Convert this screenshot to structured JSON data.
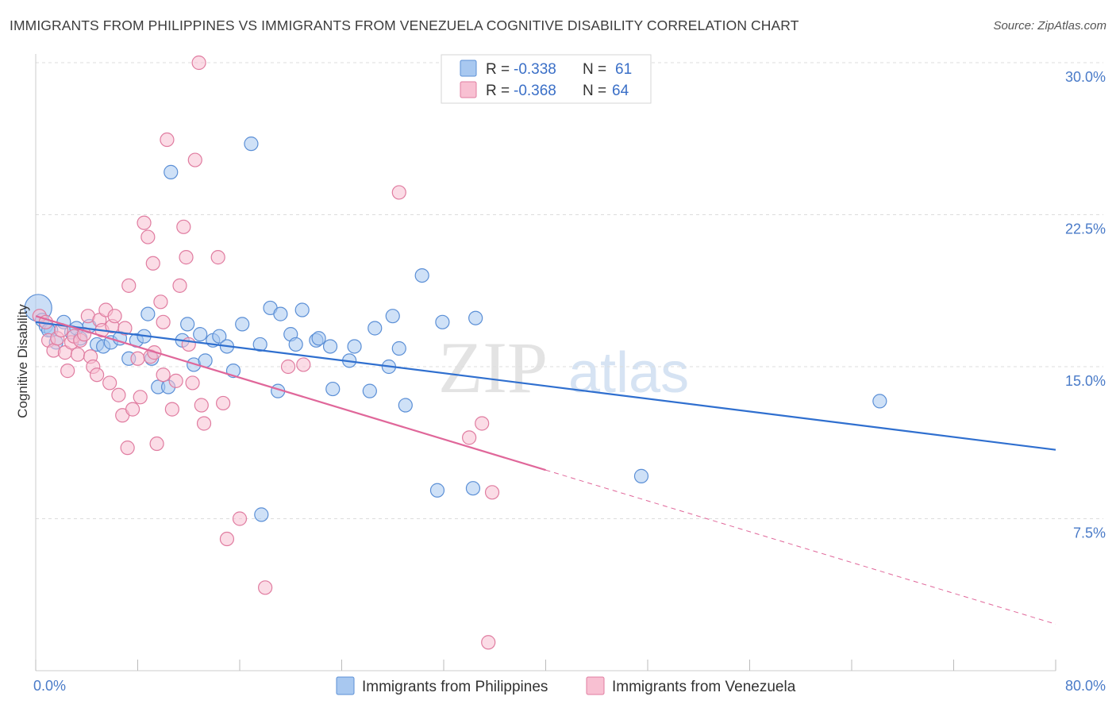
{
  "header": {
    "title": "IMMIGRANTS FROM PHILIPPINES VS IMMIGRANTS FROM VENEZUELA COGNITIVE DISABILITY CORRELATION CHART",
    "source": "Source: ZipAtlas.com"
  },
  "watermark": {
    "zip": "ZIP",
    "atlas": "atlas"
  },
  "chart_data": {
    "type": "scatter",
    "ylabel": "Cognitive Disability",
    "xlim": [
      0,
      80
    ],
    "ylim": [
      0,
      30.5
    ],
    "x_tick_labels": [
      "0.0%",
      "80.0%"
    ],
    "y_ticks": [
      7.5,
      15.0,
      22.5,
      30.0
    ],
    "y_tick_labels": [
      "7.5%",
      "15.0%",
      "22.5%",
      "30.0%"
    ],
    "grid": true,
    "legend_stats": [
      {
        "r_label": "R =",
        "r_value": "-0.338",
        "n_label": "N =",
        "n_value": "61"
      },
      {
        "r_label": "R =",
        "r_value": "-0.368",
        "n_label": "N =",
        "n_value": "64"
      }
    ],
    "series": [
      {
        "name": "Immigrants from Philippines",
        "color": "#a8c8f0",
        "stroke": "#5b8fd6",
        "line_color": "#2f6fcf",
        "trend": {
          "x0": 0,
          "y0": 17.2,
          "x1": 80,
          "y1": 10.9,
          "dashed_from": null
        },
        "points": [
          [
            0.2,
            17.9
          ],
          [
            0.5,
            17.3
          ],
          [
            0.8,
            17.0
          ],
          [
            1.2,
            16.8
          ],
          [
            1.6,
            16.2
          ],
          [
            2.2,
            17.2
          ],
          [
            2.8,
            16.7
          ],
          [
            3.5,
            16.4
          ],
          [
            4.2,
            17.0
          ],
          [
            4.8,
            16.1
          ],
          [
            5.3,
            16.0
          ],
          [
            5.9,
            16.2
          ],
          [
            6.6,
            16.4
          ],
          [
            7.3,
            15.4
          ],
          [
            7.9,
            16.3
          ],
          [
            8.5,
            16.5
          ],
          [
            8.8,
            17.6
          ],
          [
            9.1,
            15.4
          ],
          [
            9.6,
            14.0
          ],
          [
            10.4,
            14.0
          ],
          [
            10.6,
            24.6
          ],
          [
            11.5,
            16.3
          ],
          [
            11.9,
            17.1
          ],
          [
            12.4,
            15.1
          ],
          [
            12.9,
            16.6
          ],
          [
            13.3,
            15.3
          ],
          [
            13.9,
            16.3
          ],
          [
            14.4,
            16.5
          ],
          [
            15.0,
            16.0
          ],
          [
            15.5,
            14.8
          ],
          [
            16.2,
            17.1
          ],
          [
            16.9,
            26.0
          ],
          [
            17.6,
            16.1
          ],
          [
            17.7,
            7.7
          ],
          [
            18.4,
            17.9
          ],
          [
            19.0,
            13.8
          ],
          [
            19.2,
            17.6
          ],
          [
            20.0,
            16.6
          ],
          [
            20.4,
            16.1
          ],
          [
            20.9,
            17.8
          ],
          [
            22.0,
            16.3
          ],
          [
            22.2,
            16.4
          ],
          [
            23.1,
            16.0
          ],
          [
            23.3,
            13.9
          ],
          [
            24.6,
            15.3
          ],
          [
            25.0,
            16.0
          ],
          [
            26.2,
            13.8
          ],
          [
            26.6,
            16.9
          ],
          [
            27.7,
            15.0
          ],
          [
            28.0,
            17.5
          ],
          [
            28.5,
            15.9
          ],
          [
            29.0,
            13.1
          ],
          [
            30.3,
            19.5
          ],
          [
            31.5,
            8.9
          ],
          [
            31.9,
            17.2
          ],
          [
            34.3,
            9.0
          ],
          [
            34.5,
            17.4
          ],
          [
            47.5,
            9.6
          ],
          [
            66.2,
            13.3
          ],
          [
            1.0,
            16.8
          ],
          [
            3.2,
            16.9
          ]
        ]
      },
      {
        "name": "Immigrants from Venezuela",
        "color": "#f8c0d2",
        "stroke": "#e07ca0",
        "line_color": "#e0679a",
        "trend": {
          "x0": 0,
          "y0": 17.5,
          "x1": 80,
          "y1": 2.3,
          "dashed_from": 40
        },
        "points": [
          [
            0.3,
            17.5
          ],
          [
            0.8,
            17.2
          ],
          [
            1.0,
            16.3
          ],
          [
            1.4,
            15.8
          ],
          [
            1.7,
            16.4
          ],
          [
            2.0,
            16.8
          ],
          [
            2.3,
            15.7
          ],
          [
            2.5,
            14.8
          ],
          [
            2.8,
            16.2
          ],
          [
            3.0,
            16.5
          ],
          [
            3.3,
            15.6
          ],
          [
            3.5,
            16.3
          ],
          [
            3.8,
            16.6
          ],
          [
            4.1,
            17.5
          ],
          [
            4.3,
            15.5
          ],
          [
            4.5,
            15.0
          ],
          [
            4.8,
            14.6
          ],
          [
            5.0,
            17.3
          ],
          [
            5.2,
            16.8
          ],
          [
            5.5,
            17.8
          ],
          [
            5.8,
            14.2
          ],
          [
            6.0,
            17.0
          ],
          [
            6.2,
            17.5
          ],
          [
            6.5,
            13.6
          ],
          [
            6.8,
            12.6
          ],
          [
            7.0,
            16.9
          ],
          [
            7.2,
            11.0
          ],
          [
            7.3,
            19.0
          ],
          [
            7.6,
            12.9
          ],
          [
            8.0,
            15.4
          ],
          [
            8.2,
            13.5
          ],
          [
            8.5,
            22.1
          ],
          [
            8.8,
            21.4
          ],
          [
            9.0,
            15.5
          ],
          [
            9.2,
            20.1
          ],
          [
            9.5,
            11.2
          ],
          [
            9.8,
            18.2
          ],
          [
            10.0,
            17.2
          ],
          [
            10.3,
            26.2
          ],
          [
            10.7,
            12.9
          ],
          [
            11.0,
            14.3
          ],
          [
            11.3,
            19.0
          ],
          [
            11.6,
            21.9
          ],
          [
            11.8,
            20.4
          ],
          [
            12.0,
            16.1
          ],
          [
            12.3,
            14.2
          ],
          [
            12.5,
            25.2
          ],
          [
            12.8,
            30.0
          ],
          [
            13.2,
            12.2
          ],
          [
            14.3,
            20.4
          ],
          [
            14.7,
            13.2
          ],
          [
            15.0,
            6.5
          ],
          [
            16.0,
            7.5
          ],
          [
            18.0,
            4.1
          ],
          [
            19.8,
            15.0
          ],
          [
            21.0,
            15.1
          ],
          [
            28.5,
            23.6
          ],
          [
            34.0,
            11.5
          ],
          [
            35.0,
            12.2
          ],
          [
            35.5,
            1.4
          ],
          [
            35.8,
            8.8
          ],
          [
            10.0,
            14.6
          ],
          [
            9.3,
            15.7
          ],
          [
            13.0,
            13.1
          ]
        ]
      }
    ]
  }
}
